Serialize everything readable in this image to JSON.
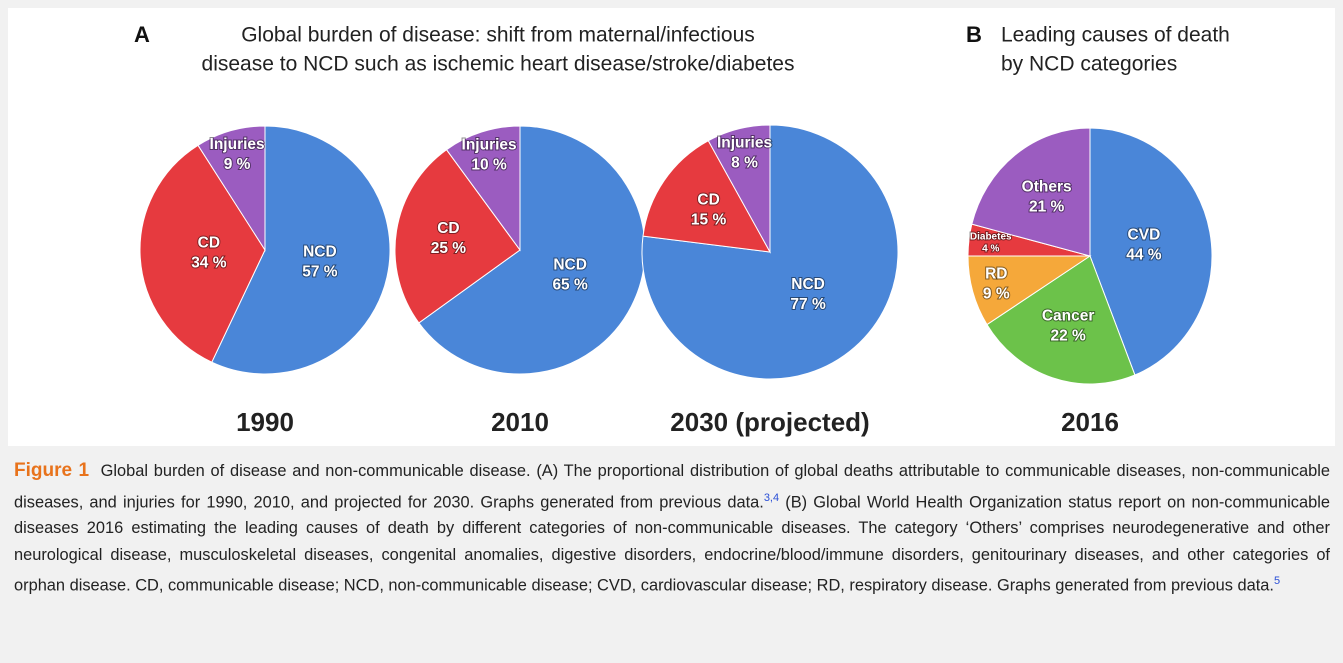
{
  "panels": [
    {
      "letter": "A",
      "title": [
        "Global burden of disease: shift from maternal/infectious",
        "disease to NCD such as ischemic heart disease/stroke/diabetes"
      ]
    },
    {
      "letter": "B",
      "title": [
        "Leading causes of death",
        "by NCD categories"
      ]
    }
  ],
  "chart_data": [
    {
      "type": "pie",
      "title": "1990",
      "categories": [
        "NCD",
        "CD",
        "Injuries"
      ],
      "values": [
        57,
        34,
        9
      ],
      "value_labels": [
        "57 %",
        "34 %",
        "9 %"
      ],
      "colors": [
        "#4a86d8",
        "#e63a3f",
        "#9b5cc0"
      ]
    },
    {
      "type": "pie",
      "title": "2010",
      "categories": [
        "NCD",
        "CD",
        "Injuries"
      ],
      "values": [
        65,
        25,
        10
      ],
      "value_labels": [
        "65 %",
        "25 %",
        "10 %"
      ],
      "colors": [
        "#4a86d8",
        "#e63a3f",
        "#9b5cc0"
      ]
    },
    {
      "type": "pie",
      "title": "2030 (projected)",
      "categories": [
        "NCD",
        "CD",
        "Injuries"
      ],
      "values": [
        77,
        15,
        8
      ],
      "value_labels": [
        "77 %",
        "15 %",
        "8 %"
      ],
      "colors": [
        "#4a86d8",
        "#e63a3f",
        "#9b5cc0"
      ]
    },
    {
      "type": "pie",
      "title": "2016",
      "categories": [
        "CVD",
        "Cancer",
        "RD",
        "Diabetes",
        "Others"
      ],
      "values": [
        44,
        22,
        9,
        4,
        21
      ],
      "value_labels": [
        "44 %",
        "22 %",
        "9 %",
        "4 %",
        "21 %"
      ],
      "colors": [
        "#4a86d8",
        "#6cc24a",
        "#f5a83a",
        "#e63a3f",
        "#9b5cc0"
      ]
    }
  ],
  "caption": {
    "label": "Figure 1",
    "text_1": "Global burden of disease and non-communicable disease. (A) The proportional distribution of global deaths attributable to communicable diseases, non-communicable diseases, and injuries for 1990, 2010, and projected for 2030. Graphs generated from previous data.",
    "ref_1": "3,4",
    "text_2": " (B) Global World Health Organization status report on non-communicable diseases 2016 estimating the leading causes of death by different categories of non-communicable diseases. The category ‘Others’ comprises neurodegenerative and other neurological disease, musculoskeletal diseases, congenital anomalies, digestive disorders, endocrine/blood/immune disorders, genitourinary diseases, and other categories of orphan disease. CD, communicable disease; NCD, non-communicable disease; CVD, cardiovascular disease; RD, respiratory disease. Graphs generated from previous data.",
    "ref_2": "5"
  }
}
